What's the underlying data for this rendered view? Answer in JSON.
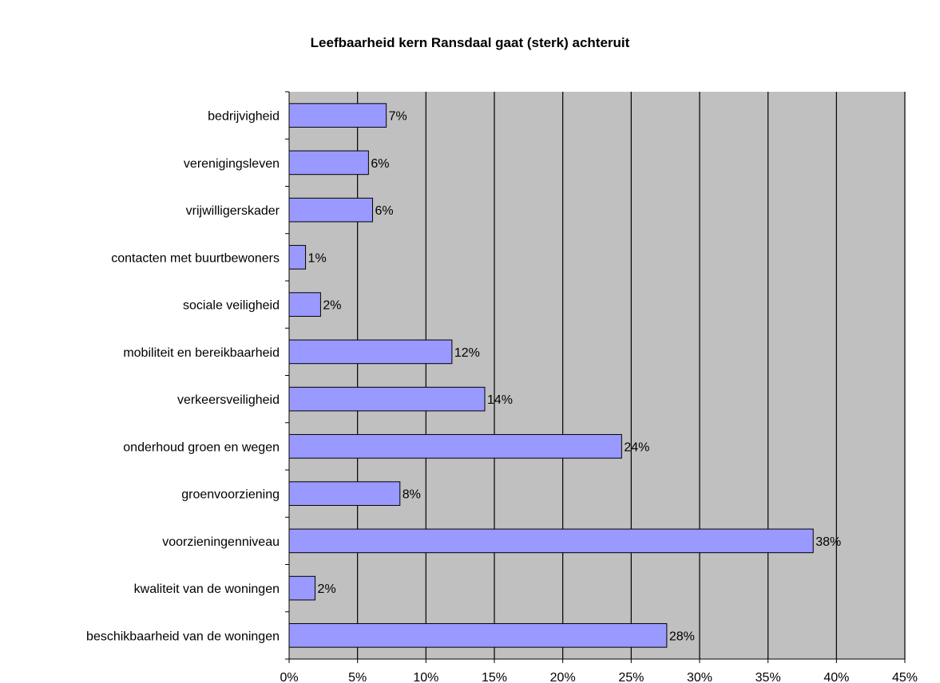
{
  "chart_data": {
    "type": "bar",
    "orientation": "horizontal",
    "title": "Leefbaarheid kern Ransdaal gaat (sterk) achteruit",
    "categories": [
      "bedrijvigheid",
      "verenigingsleven",
      "vrijwilligerskader",
      "contacten met buurtbewoners",
      "sociale veiligheid",
      "mobiliteit en bereikbaarheid",
      "verkeersveiligheid",
      "onderhoud groen en wegen",
      "groenvoorziening",
      "voorzieningenniveau",
      "kwaliteit van de woningen",
      "beschikbaarheid van de woningen"
    ],
    "values": [
      7.1,
      5.8,
      6.1,
      1.2,
      2.3,
      11.9,
      14.3,
      24.3,
      8.1,
      38.3,
      1.9,
      27.6
    ],
    "data_labels": [
      "7%",
      "6%",
      "6%",
      "1%",
      "2%",
      "12%",
      "14%",
      "24%",
      "8%",
      "38%",
      "2%",
      "28%"
    ],
    "xlim": [
      0,
      45
    ],
    "xticks": [
      0,
      5,
      10,
      15,
      20,
      25,
      30,
      35,
      40,
      45
    ],
    "xtick_labels": [
      "0%",
      "5%",
      "10%",
      "15%",
      "20%",
      "25%",
      "30%",
      "35%",
      "40%",
      "45%"
    ],
    "xlabel": "",
    "ylabel": "",
    "grid": "vertical",
    "legend": "none",
    "colors": {
      "bar_fill": "#9999ff",
      "bar_stroke": "#000000",
      "plot_background": "#c0c0c0",
      "gridline": "#000000"
    }
  }
}
